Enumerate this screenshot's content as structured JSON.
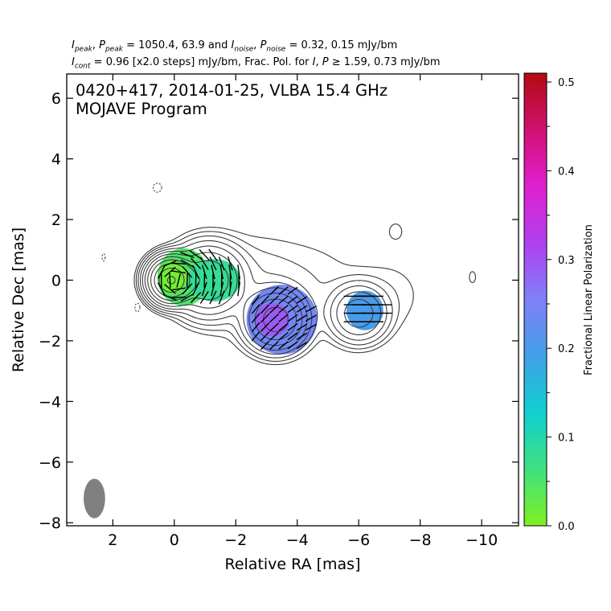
{
  "header": {
    "line1": {
      "i_peak_sym": "I",
      "i_peak_sub": "peak",
      "p_peak_sym": "P",
      "p_peak_sub": "peak",
      "peak_values": "= 1050.4, 63.9 and",
      "i_noise_sym": "I",
      "i_noise_sub": "noise",
      "p_noise_sym": "P",
      "p_noise_sub": "noise",
      "noise_values": "= 0.32, 0.15 mJy/bm"
    },
    "line2": {
      "i_cont_sym": "I",
      "i_cont_sub": "cont",
      "cont_values": "= 0.96 [x2.0 steps] mJy/bm, Frac. Pol. for",
      "frac_i_sym": "I",
      "frac_p_sym": "P",
      "frac_values": "≥ 1.59, 0.73 mJy/bm"
    }
  },
  "chart_data": {
    "type": "heatmap",
    "title": "0420+417, 2014-01-25, VLBA 15.4 GHz",
    "subtitle": "MOJAVE Program",
    "xlabel": "Relative RA [mas]",
    "ylabel": "Relative Dec [mas]",
    "xlim": [
      3.5,
      -11.2
    ],
    "ylim": [
      -8.1,
      6.8
    ],
    "xticks": [
      2,
      0,
      -2,
      -4,
      -6,
      -8,
      -10
    ],
    "xtick_labels": [
      "2",
      "0",
      "−2",
      "−4",
      "−6",
      "−8",
      "−10"
    ],
    "yticks": [
      6,
      4,
      2,
      0,
      -2,
      -4,
      -6,
      -8
    ],
    "ytick_labels": [
      "6",
      "4",
      "2",
      "0",
      "−2",
      "−4",
      "−6",
      "−8"
    ],
    "colorbar": {
      "label": "Fractional Linear Polarization",
      "range": [
        0.0,
        0.51
      ],
      "ticks": [
        0.0,
        0.1,
        0.2,
        0.3,
        0.4,
        0.5
      ],
      "tick_labels": [
        "0.0",
        "0.1",
        "0.2",
        "0.3",
        "0.4",
        "0.5"
      ],
      "colors": [
        "#80f020",
        "#40e080",
        "#10d0d0",
        "#40a0e8",
        "#8080f8",
        "#b040f0",
        "#e020d0",
        "#d01070",
        "#b00c10"
      ]
    },
    "polarization_regions": [
      {
        "x": -0.3,
        "y": 0.1,
        "rx": 0.85,
        "ry": 0.95,
        "frac": 0.05
      },
      {
        "x": -1.3,
        "y": 0.0,
        "rx": 0.85,
        "ry": 0.7,
        "frac": 0.08
      },
      {
        "x": -3.5,
        "y": -1.3,
        "rx": 1.15,
        "ry": 1.15,
        "frac": 0.24
      },
      {
        "x": -6.2,
        "y": -1.0,
        "rx": 0.6,
        "ry": 0.65,
        "frac": 0.2
      }
    ],
    "contours_mJy_per_beam": [
      -0.96,
      0.96,
      1.92,
      3.84,
      7.68,
      15.36,
      30.72,
      61.44,
      122.88,
      245.76,
      491.52,
      983.04
    ],
    "beam": {
      "x": 2.6,
      "y": -7.2,
      "major_mas": 1.3,
      "minor_mas": 0.7,
      "pa_deg": 0,
      "color": "#808080"
    }
  }
}
